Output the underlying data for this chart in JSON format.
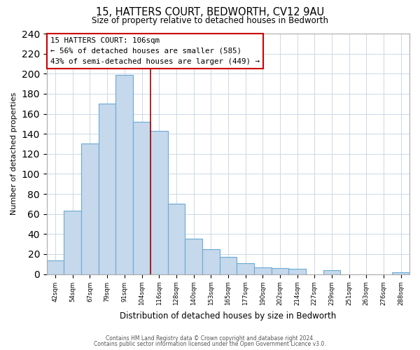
{
  "title": "15, HATTERS COURT, BEDWORTH, CV12 9AU",
  "subtitle": "Size of property relative to detached houses in Bedworth",
  "xlabel": "Distribution of detached houses by size in Bedworth",
  "ylabel": "Number of detached properties",
  "bin_labels": [
    "42sqm",
    "54sqm",
    "67sqm",
    "79sqm",
    "91sqm",
    "104sqm",
    "116sqm",
    "128sqm",
    "140sqm",
    "153sqm",
    "165sqm",
    "177sqm",
    "190sqm",
    "202sqm",
    "214sqm",
    "227sqm",
    "239sqm",
    "251sqm",
    "263sqm",
    "276sqm",
    "288sqm"
  ],
  "bar_heights": [
    14,
    63,
    130,
    170,
    199,
    152,
    143,
    70,
    35,
    25,
    17,
    11,
    7,
    6,
    5,
    0,
    4,
    0,
    0,
    0,
    2
  ],
  "bar_color": "#c5d8ec",
  "bar_edge_color": "#6aaad4",
  "vline_color": "#aa0000",
  "annotation_title": "15 HATTERS COURT: 106sqm",
  "annotation_line1": "← 56% of detached houses are smaller (585)",
  "annotation_line2": "43% of semi-detached houses are larger (449) →",
  "annotation_box_color": "#ffffff",
  "annotation_box_edge": "#cc0000",
  "ylim": [
    0,
    240
  ],
  "yticks": [
    0,
    20,
    40,
    60,
    80,
    100,
    120,
    140,
    160,
    180,
    200,
    220,
    240
  ],
  "footer1": "Contains HM Land Registry data © Crown copyright and database right 2024.",
  "footer2": "Contains public sector information licensed under the Open Government Licence v3.0.",
  "bg_color": "#ffffff",
  "grid_color": "#ccd8e8"
}
